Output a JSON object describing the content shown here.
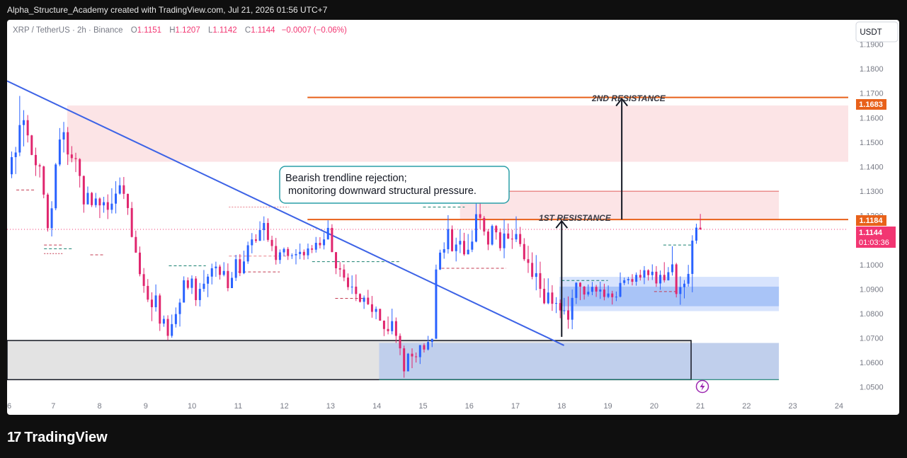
{
  "header": {
    "credit": "Alpha_Structure_Academy created with TradingView.com, Jul 21, 2026 01:56 UTC+7"
  },
  "footer": {
    "brand": "TradingView",
    "logo_mark": "17"
  },
  "chart_data": {
    "type": "candlestick",
    "symbol_line": "XRP / TetherUS · 2h · Binance",
    "ohlc": {
      "o_label": "O",
      "o": "1.1151",
      "h_label": "H",
      "h": "1.1207",
      "l_label": "L",
      "l": "1.1142",
      "c_label": "C",
      "c": "1.1144",
      "change": "−0.0007 (−0.06%)"
    },
    "currency_button": "USDT",
    "ylim": [
      1.045,
      1.2
    ],
    "y_ticks": [
      "1.0500",
      "1.0600",
      "1.0700",
      "1.0800",
      "1.0900",
      "1.1000",
      "1.1100",
      "1.1200",
      "1.1300",
      "1.1400",
      "1.1500",
      "1.1600",
      "1.1700",
      "1.1800",
      "1.1900"
    ],
    "xlim": [
      6,
      24.2
    ],
    "x_ticks": [
      "6",
      "7",
      "8",
      "9",
      "10",
      "11",
      "12",
      "13",
      "14",
      "15",
      "16",
      "17",
      "18",
      "19",
      "20",
      "21",
      "22",
      "23",
      "24"
    ],
    "price_tags": [
      {
        "label": "1.1683",
        "value": 1.1683,
        "color": "#e8611a"
      },
      {
        "label": "1.1184",
        "value": 1.1184,
        "color": "#e8611a"
      }
    ],
    "last_price": {
      "label": "1.1144",
      "value": 1.1144,
      "countdown": "01:03:36",
      "color": "#f23672"
    },
    "annotations": {
      "callout": [
        "Bearish trendline rejection;",
        "monitoring downward structural pressure."
      ],
      "resistance_1": "1ST RESISTANCE",
      "resistance_2": "2ND RESISTANCE"
    },
    "zones": [
      {
        "kind": "supply",
        "x0": 7.3,
        "x1": 24.2,
        "y0": 1.142,
        "y1": 1.165,
        "color": "#fce4e6"
      },
      {
        "kind": "resistance",
        "x0": 15.8,
        "x1": 22.7,
        "y0": 1.1184,
        "y1": 1.13,
        "color": "#fce4e6"
      },
      {
        "kind": "support",
        "x0": 6,
        "x1": 20.8,
        "y0": 1.053,
        "y1": 1.069,
        "color": "#e3e3e3"
      },
      {
        "kind": "demand",
        "x0": 14.05,
        "x1": 22.7,
        "y0": 1.053,
        "y1": 1.068,
        "color": "#c0cfec"
      },
      {
        "kind": "demand",
        "x0": 17.95,
        "x1": 22.7,
        "y0": 1.081,
        "y1": 1.095,
        "color": "#d7e3fd"
      },
      {
        "kind": "demand",
        "x0": 17.95,
        "x1": 22.7,
        "y0": 1.083,
        "y1": 1.091,
        "color": "#a9c4f7"
      }
    ],
    "levels": [
      {
        "value": 1.1683,
        "x0": 12.5,
        "x1": 24.2,
        "color": "#e8611a"
      },
      {
        "value": 1.1184,
        "x0": 12.5,
        "x1": 24.2,
        "color": "#e8611a"
      }
    ],
    "trendline": {
      "x0": 6,
      "y0": 1.175,
      "x1": 18.05,
      "y1": 1.067
    },
    "candles": [
      [
        1.1369,
        1.1462,
        1.1353,
        1.1439
      ],
      [
        1.1439,
        1.1481,
        1.137,
        1.1458
      ],
      [
        1.1458,
        1.1689,
        1.1443,
        1.157
      ],
      [
        1.157,
        1.1631,
        1.1483,
        1.159
      ],
      [
        1.159,
        1.1611,
        1.1499,
        1.1528
      ],
      [
        1.1528,
        1.153,
        1.1447,
        1.1448
      ],
      [
        1.1448,
        1.1478,
        1.1362,
        1.1406
      ],
      [
        1.1406,
        1.1413,
        1.1356,
        1.1401
      ],
      [
        1.1401,
        1.1404,
        1.1271,
        1.1286
      ],
      [
        1.1286,
        1.1293,
        1.1135,
        1.1149
      ],
      [
        1.1149,
        1.1259,
        1.1115,
        1.123
      ],
      [
        1.123,
        1.1415,
        1.1222,
        1.1409
      ],
      [
        1.1409,
        1.1558,
        1.1402,
        1.1511
      ],
      [
        1.1511,
        1.1583,
        1.1458,
        1.1541
      ],
      [
        1.1541,
        1.1562,
        1.1407,
        1.145
      ],
      [
        1.145,
        1.1484,
        1.1418,
        1.1435
      ],
      [
        1.1435,
        1.1457,
        1.1378,
        1.1431
      ],
      [
        1.1431,
        1.1435,
        1.1315,
        1.1362
      ],
      [
        1.1362,
        1.1364,
        1.1212,
        1.1246
      ],
      [
        1.1246,
        1.1319,
        1.1246,
        1.1293
      ],
      [
        1.1293,
        1.1297,
        1.1235,
        1.1243
      ],
      [
        1.1243,
        1.1293,
        1.1233,
        1.127
      ],
      [
        1.127,
        1.1275,
        1.119,
        1.1242
      ],
      [
        1.1242,
        1.1277,
        1.1212,
        1.1255
      ],
      [
        1.1255,
        1.1287,
        1.1186,
        1.1224
      ],
      [
        1.1224,
        1.1312,
        1.1209,
        1.1249
      ],
      [
        1.1249,
        1.1341,
        1.1209,
        1.129
      ],
      [
        1.129,
        1.1356,
        1.1286,
        1.1324
      ],
      [
        1.1324,
        1.1358,
        1.1268,
        1.1289
      ],
      [
        1.1289,
        1.129,
        1.1203,
        1.1231
      ],
      [
        1.1231,
        1.1256,
        1.1111,
        1.1113
      ],
      [
        1.1113,
        1.1139,
        1.1048,
        1.1049
      ],
      [
        1.1049,
        1.1074,
        1.0952,
        1.0961
      ],
      [
        1.0961,
        1.0986,
        1.0885,
        1.0913
      ],
      [
        1.0913,
        1.0941,
        1.0847,
        1.0857
      ],
      [
        1.0857,
        1.0887,
        1.0769,
        1.0826
      ],
      [
        1.0826,
        1.0919,
        1.0808,
        1.0874
      ],
      [
        1.0874,
        1.0882,
        1.0729,
        1.0759
      ],
      [
        1.0759,
        1.0792,
        1.0746,
        1.0778
      ],
      [
        1.0778,
        1.0793,
        1.0691,
        1.0709
      ],
      [
        1.0709,
        1.0796,
        1.0701,
        1.0757
      ],
      [
        1.0757,
        1.0825,
        1.0743,
        1.0798
      ],
      [
        1.0798,
        1.0861,
        1.0747,
        1.0845
      ],
      [
        1.0845,
        1.0952,
        1.0845,
        1.0936
      ],
      [
        1.0936,
        1.0948,
        1.0898,
        1.0905
      ],
      [
        1.0905,
        1.0956,
        1.088,
        1.0943
      ],
      [
        1.0943,
        1.0953,
        1.0831,
        1.0855
      ],
      [
        1.0855,
        1.0925,
        1.0829,
        1.0901
      ],
      [
        1.0901,
        1.0978,
        1.0889,
        1.0922
      ],
      [
        1.0922,
        1.0962,
        1.0867,
        1.0951
      ],
      [
        1.0951,
        1.1004,
        1.0919,
        1.0985
      ],
      [
        1.0985,
        1.1012,
        1.095,
        1.0992
      ],
      [
        1.0992,
        1.1,
        1.0939,
        1.0958
      ],
      [
        1.0958,
        1.101,
        1.0952,
        1.0974
      ],
      [
        1.0974,
        1.1005,
        1.0891,
        1.0904
      ],
      [
        1.0904,
        1.097,
        1.0904,
        1.0946
      ],
      [
        1.0946,
        1.104,
        1.0933,
        1.1022
      ],
      [
        1.1022,
        1.1043,
        1.0953,
        1.0965
      ],
      [
        1.0965,
        1.1057,
        1.0961,
        1.1013
      ],
      [
        1.1013,
        1.1094,
        1.1003,
        1.1079
      ],
      [
        1.1079,
        1.1129,
        1.1046,
        1.1103
      ],
      [
        1.1103,
        1.1124,
        1.1089,
        1.1097
      ],
      [
        1.1097,
        1.1177,
        1.1097,
        1.1141
      ],
      [
        1.1141,
        1.1197,
        1.1098,
        1.117
      ],
      [
        1.117,
        1.1189,
        1.1093,
        1.1101
      ],
      [
        1.1101,
        1.1118,
        1.1055,
        1.1076
      ],
      [
        1.1076,
        1.1109,
        1.1,
        1.1019
      ],
      [
        1.1019,
        1.1062,
        1.1003,
        1.105
      ],
      [
        1.105,
        1.107,
        1.1034,
        1.1064
      ],
      [
        1.1064,
        1.1072,
        1.1019,
        1.1036
      ],
      [
        1.1036,
        1.1046,
        1.1023,
        1.1038
      ],
      [
        1.1038,
        1.1063,
        1.1001,
        1.1043
      ],
      [
        1.1043,
        1.1086,
        1.1022,
        1.1052
      ],
      [
        1.1052,
        1.1062,
        1.102,
        1.1038
      ],
      [
        1.1038,
        1.1086,
        1.1022,
        1.1066
      ],
      [
        1.1066,
        1.108,
        1.1047,
        1.1061
      ],
      [
        1.1061,
        1.1113,
        1.1049,
        1.1089
      ],
      [
        1.1089,
        1.1112,
        1.1066,
        1.1079
      ],
      [
        1.1079,
        1.1131,
        1.1062,
        1.1103
      ],
      [
        1.1103,
        1.1181,
        1.1102,
        1.115
      ],
      [
        1.115,
        1.1165,
        1.1051,
        1.1051
      ],
      [
        1.1051,
        1.1051,
        1.0961,
        1.0985
      ],
      [
        1.0985,
        1.101,
        1.095,
        1.098
      ],
      [
        1.098,
        1.1001,
        1.0932,
        1.0947
      ],
      [
        1.0947,
        1.0964,
        1.0896,
        1.0908
      ],
      [
        1.0908,
        1.0956,
        1.088,
        1.091
      ],
      [
        1.091,
        1.096,
        1.0851,
        1.088
      ],
      [
        1.088,
        1.0883,
        1.0845,
        1.0848
      ],
      [
        1.0848,
        1.0874,
        1.0819,
        1.0865
      ],
      [
        1.0865,
        1.0897,
        1.0835,
        1.0838
      ],
      [
        1.0838,
        1.0872,
        1.0783,
        1.0807
      ],
      [
        1.0807,
        1.0829,
        1.0777,
        1.0819
      ],
      [
        1.0819,
        1.082,
        1.0771,
        1.0771
      ],
      [
        1.0771,
        1.0772,
        1.0708,
        1.0737
      ],
      [
        1.0737,
        1.0788,
        1.0715,
        1.0728
      ],
      [
        1.0728,
        1.082,
        1.0715,
        1.0769
      ],
      [
        1.0769,
        1.0784,
        1.068,
        1.0709
      ],
      [
        1.0709,
        1.0719,
        1.063,
        1.0658
      ],
      [
        1.0658,
        1.0669,
        1.0538,
        1.0564
      ],
      [
        1.0564,
        1.0639,
        1.0564,
        1.0636
      ],
      [
        1.0636,
        1.0658,
        1.0577,
        1.0625
      ],
      [
        1.0625,
        1.0641,
        1.06,
        1.0622
      ],
      [
        1.0622,
        1.0672,
        1.0594,
        1.0671
      ],
      [
        1.0671,
        1.0679,
        1.0641,
        1.0653
      ],
      [
        1.0653,
        1.0709,
        1.0649,
        1.0684
      ],
      [
        1.0684,
        1.0697,
        1.0663,
        1.0697
      ],
      [
        1.0697,
        1.1,
        1.0697,
        1.098
      ],
      [
        1.098,
        1.1061,
        1.0978,
        1.1049
      ],
      [
        1.1049,
        1.1091,
        1.1024,
        1.1063
      ],
      [
        1.1063,
        1.1202,
        1.1045,
        1.1145
      ],
      [
        1.1145,
        1.116,
        1.1053,
        1.1055
      ],
      [
        1.1055,
        1.111,
        1.1013,
        1.1082
      ],
      [
        1.1082,
        1.1144,
        1.1047,
        1.1097
      ],
      [
        1.1097,
        1.113,
        1.1036,
        1.1042
      ],
      [
        1.1042,
        1.1125,
        1.1042,
        1.1061
      ],
      [
        1.1061,
        1.114,
        1.1051,
        1.1094
      ],
      [
        1.1094,
        1.1293,
        1.1091,
        1.1206
      ],
      [
        1.1206,
        1.1293,
        1.1146,
        1.1191
      ],
      [
        1.1191,
        1.1199,
        1.1119,
        1.1135
      ],
      [
        1.1135,
        1.1145,
        1.1059,
        1.1082
      ],
      [
        1.1082,
        1.1164,
        1.1078,
        1.1158
      ],
      [
        1.1158,
        1.1162,
        1.1102,
        1.1132
      ],
      [
        1.1132,
        1.1148,
        1.1056,
        1.1067
      ],
      [
        1.1067,
        1.1185,
        1.1026,
        1.1127
      ],
      [
        1.1127,
        1.1168,
        1.1105,
        1.1106
      ],
      [
        1.1106,
        1.1142,
        1.1064,
        1.1103
      ],
      [
        1.1103,
        1.1197,
        1.1092,
        1.1125
      ],
      [
        1.1125,
        1.1154,
        1.1073,
        1.1084
      ],
      [
        1.1084,
        1.1108,
        1.1015,
        1.1022
      ],
      [
        1.1022,
        1.1077,
        1.0966,
        1.1007
      ],
      [
        1.1007,
        1.105,
        1.094,
        1.095
      ],
      [
        1.095,
        1.1039,
        1.0895,
        1.0965
      ],
      [
        1.0965,
        1.1012,
        1.0865,
        1.0901
      ],
      [
        1.0901,
        1.0944,
        1.0838,
        1.0842
      ],
      [
        1.0842,
        1.0944,
        1.0838,
        1.0886
      ],
      [
        1.0886,
        1.0916,
        1.0811,
        1.084
      ],
      [
        1.084,
        1.0867,
        1.0802,
        1.0843
      ],
      [
        1.0843,
        1.0858,
        1.0781,
        1.0813
      ],
      [
        1.0813,
        1.0864,
        1.0796,
        1.0813
      ],
      [
        1.0813,
        1.087,
        1.0738,
        1.0775
      ],
      [
        1.0775,
        1.0898,
        1.0736,
        1.0864
      ],
      [
        1.0864,
        1.0928,
        1.0839,
        1.0926
      ],
      [
        1.0926,
        1.0928,
        1.0855,
        1.091
      ],
      [
        1.091,
        1.0913,
        1.0857,
        1.0878
      ],
      [
        1.0878,
        1.0919,
        1.087,
        1.0889
      ],
      [
        1.0889,
        1.0929,
        1.0875,
        1.0909
      ],
      [
        1.0909,
        1.0917,
        1.0868,
        1.089
      ],
      [
        1.089,
        1.093,
        1.086,
        1.0898
      ],
      [
        1.0898,
        1.0922,
        1.0854,
        1.0868
      ],
      [
        1.0868,
        1.0915,
        1.0863,
        1.0882
      ],
      [
        1.0882,
        1.0893,
        1.0837,
        1.0867
      ],
      [
        1.0867,
        1.089,
        1.0851,
        1.0869
      ],
      [
        1.0869,
        1.0968,
        1.0866,
        1.0925
      ],
      [
        1.0925,
        1.0947,
        1.0916,
        1.0936
      ],
      [
        1.0936,
        1.095,
        1.092,
        1.0941
      ],
      [
        1.0941,
        1.0961,
        1.0915,
        1.093
      ],
      [
        1.093,
        1.0968,
        1.0914,
        1.0958
      ],
      [
        1.0958,
        1.0979,
        1.0935,
        1.0947
      ],
      [
        1.0947,
        1.0994,
        1.092,
        1.0977
      ],
      [
        1.0977,
        1.0981,
        1.0935,
        1.0957
      ],
      [
        1.0957,
        1.1001,
        1.0937,
        1.0971
      ],
      [
        1.0971,
        1.0994,
        1.0909,
        1.0923
      ],
      [
        1.0923,
        1.0976,
        1.0897,
        1.0958
      ],
      [
        1.0958,
        1.101,
        1.0927,
        1.0936
      ],
      [
        1.0936,
        1.099,
        1.0935,
        1.0969
      ],
      [
        1.0969,
        1.1075,
        1.0955,
        1.1001
      ],
      [
        1.1001,
        1.1007,
        1.0866,
        1.088
      ],
      [
        1.088,
        1.0952,
        1.0836,
        1.0908
      ],
      [
        1.0908,
        1.0937,
        1.0862,
        1.0922
      ],
      [
        1.0922,
        1.0999,
        1.091,
        1.0962
      ],
      [
        1.0962,
        1.112,
        1.0887,
        1.1098
      ],
      [
        1.1098,
        1.1167,
        1.1085,
        1.1151
      ],
      [
        1.1151,
        1.1207,
        1.1142,
        1.1144
      ]
    ]
  }
}
